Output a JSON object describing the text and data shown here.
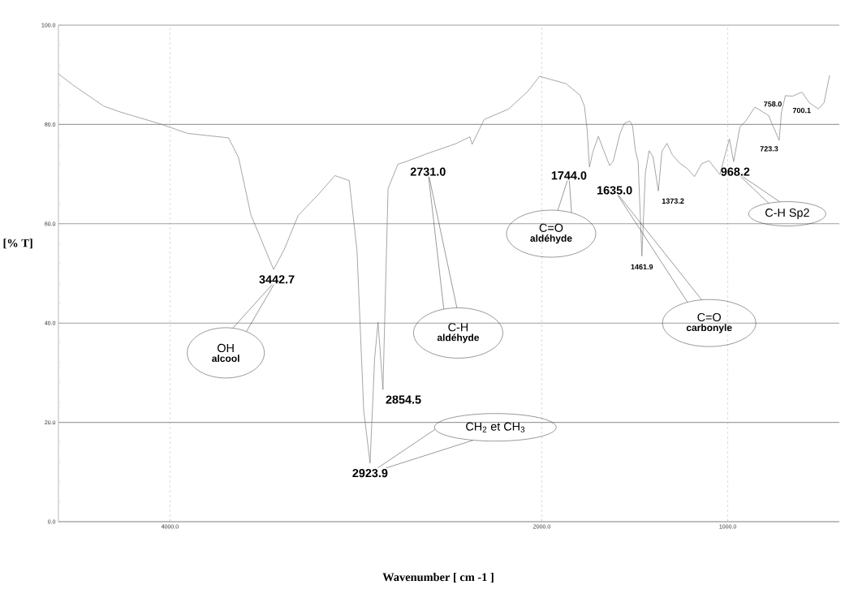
{
  "chart_data": {
    "type": "line",
    "xlabel": "Wavenumber [ cm -1 ]",
    "ylabel": "[% T]",
    "xlim": [
      4600,
      400
    ],
    "ylim": [
      0,
      100
    ],
    "xticks": [
      {
        "value": 4000,
        "label": "4000.0"
      },
      {
        "value": 2000,
        "label": "2000.0"
      },
      {
        "value": 1000,
        "label": "1000.0"
      }
    ],
    "yticks": [
      {
        "value": 0,
        "label": "0.0"
      },
      {
        "value": 20,
        "label": "20.0"
      },
      {
        "value": 40,
        "label": "40.0"
      },
      {
        "value": 60,
        "label": "60.0"
      },
      {
        "value": 80,
        "label": "80.0"
      },
      {
        "value": 100,
        "label": "100.0"
      }
    ],
    "grid": true,
    "x": [
      4600,
      4524,
      4357,
      4267,
      4060,
      3905,
      3685,
      3631,
      3565,
      3442.7,
      3387,
      3310,
      3202,
      3113,
      3036,
      2994,
      2958,
      2923.9,
      2899,
      2881,
      2854.5,
      2827,
      2774,
      2731.0,
      2619,
      2464,
      2387,
      2375,
      2310,
      2179,
      2077,
      2012,
      1946,
      1869,
      1795,
      1771,
      1756,
      1744.0,
      1726,
      1696,
      1670,
      1635.0,
      1616,
      1580,
      1557,
      1527,
      1512,
      1497,
      1482,
      1461.9,
      1443,
      1423,
      1402,
      1373.2,
      1354,
      1327,
      1298,
      1259,
      1220,
      1179,
      1140,
      1101,
      1042,
      1012,
      991,
      968.2,
      935,
      905,
      854,
      815,
      780,
      758.0,
      723.3,
      711,
      700.1,
      690,
      652,
      601,
      562,
      512,
      482,
      452
    ],
    "series": [
      {
        "color": "#808080",
        "values": [
          90.2,
          88.0,
          83.7,
          82.5,
          80.2,
          78.2,
          77.3,
          73.3,
          61.8,
          50.8,
          54.7,
          61.7,
          65.9,
          69.7,
          68.7,
          54.5,
          22.4,
          11.8,
          33.0,
          40.2,
          26.6,
          67.1,
          72.0,
          72.5,
          74.1,
          76.1,
          77.5,
          76.0,
          81.0,
          83.1,
          86.6,
          89.7,
          89.0,
          88.2,
          85.9,
          83.7,
          78.8,
          71.4,
          74.4,
          77.6,
          75.0,
          71.7,
          72.6,
          78.1,
          80.2,
          80.7,
          79.7,
          74.8,
          72.5,
          53.5,
          70.3,
          74.7,
          73.5,
          66.6,
          74.6,
          76.2,
          73.9,
          72.2,
          71.2,
          69.5,
          72.1,
          72.7,
          69.9,
          74.2,
          77.1,
          72.5,
          79.5,
          80.6,
          83.5,
          82.6,
          81.8,
          79.8,
          76.8,
          82.5,
          84.2,
          85.8,
          85.7,
          86.5,
          84.4,
          83.1,
          84.4,
          89.9
        ]
      }
    ],
    "annotations": [
      {
        "text": "3442.7",
        "x": 3442.7,
        "y": 50.8
      },
      {
        "text": "2923.9",
        "x": 2923.9,
        "y": 11.8
      },
      {
        "text": "2854.5",
        "x": 2854.5,
        "y": 26.6
      },
      {
        "text": "2731.0",
        "x": 2731.0,
        "y": 72.5
      },
      {
        "text": "1744.0",
        "x": 1744.0,
        "y": 71.4
      },
      {
        "text": "1635.0",
        "x": 1635.0,
        "y": 71.7
      },
      {
        "text": "1461.9",
        "x": 1461.9,
        "y": 53.5
      },
      {
        "text": "1373.2",
        "x": 1373.2,
        "y": 66.6
      },
      {
        "text": "968.2",
        "x": 968.2,
        "y": 72.5
      },
      {
        "text": "758.0",
        "x": 758.0,
        "y": 79.8
      },
      {
        "text": "723.3",
        "x": 723.3,
        "y": 76.8
      },
      {
        "text": "700.1",
        "x": 700.1,
        "y": 84.2
      },
      "OH",
      "alcool",
      "C-H",
      "aldéhyde",
      "C=O",
      "aldéhyde",
      "C=O",
      "carbonyle",
      "CH$_{2}$ et CH$_{3}$",
      "C-H Sp2"
    ]
  }
}
